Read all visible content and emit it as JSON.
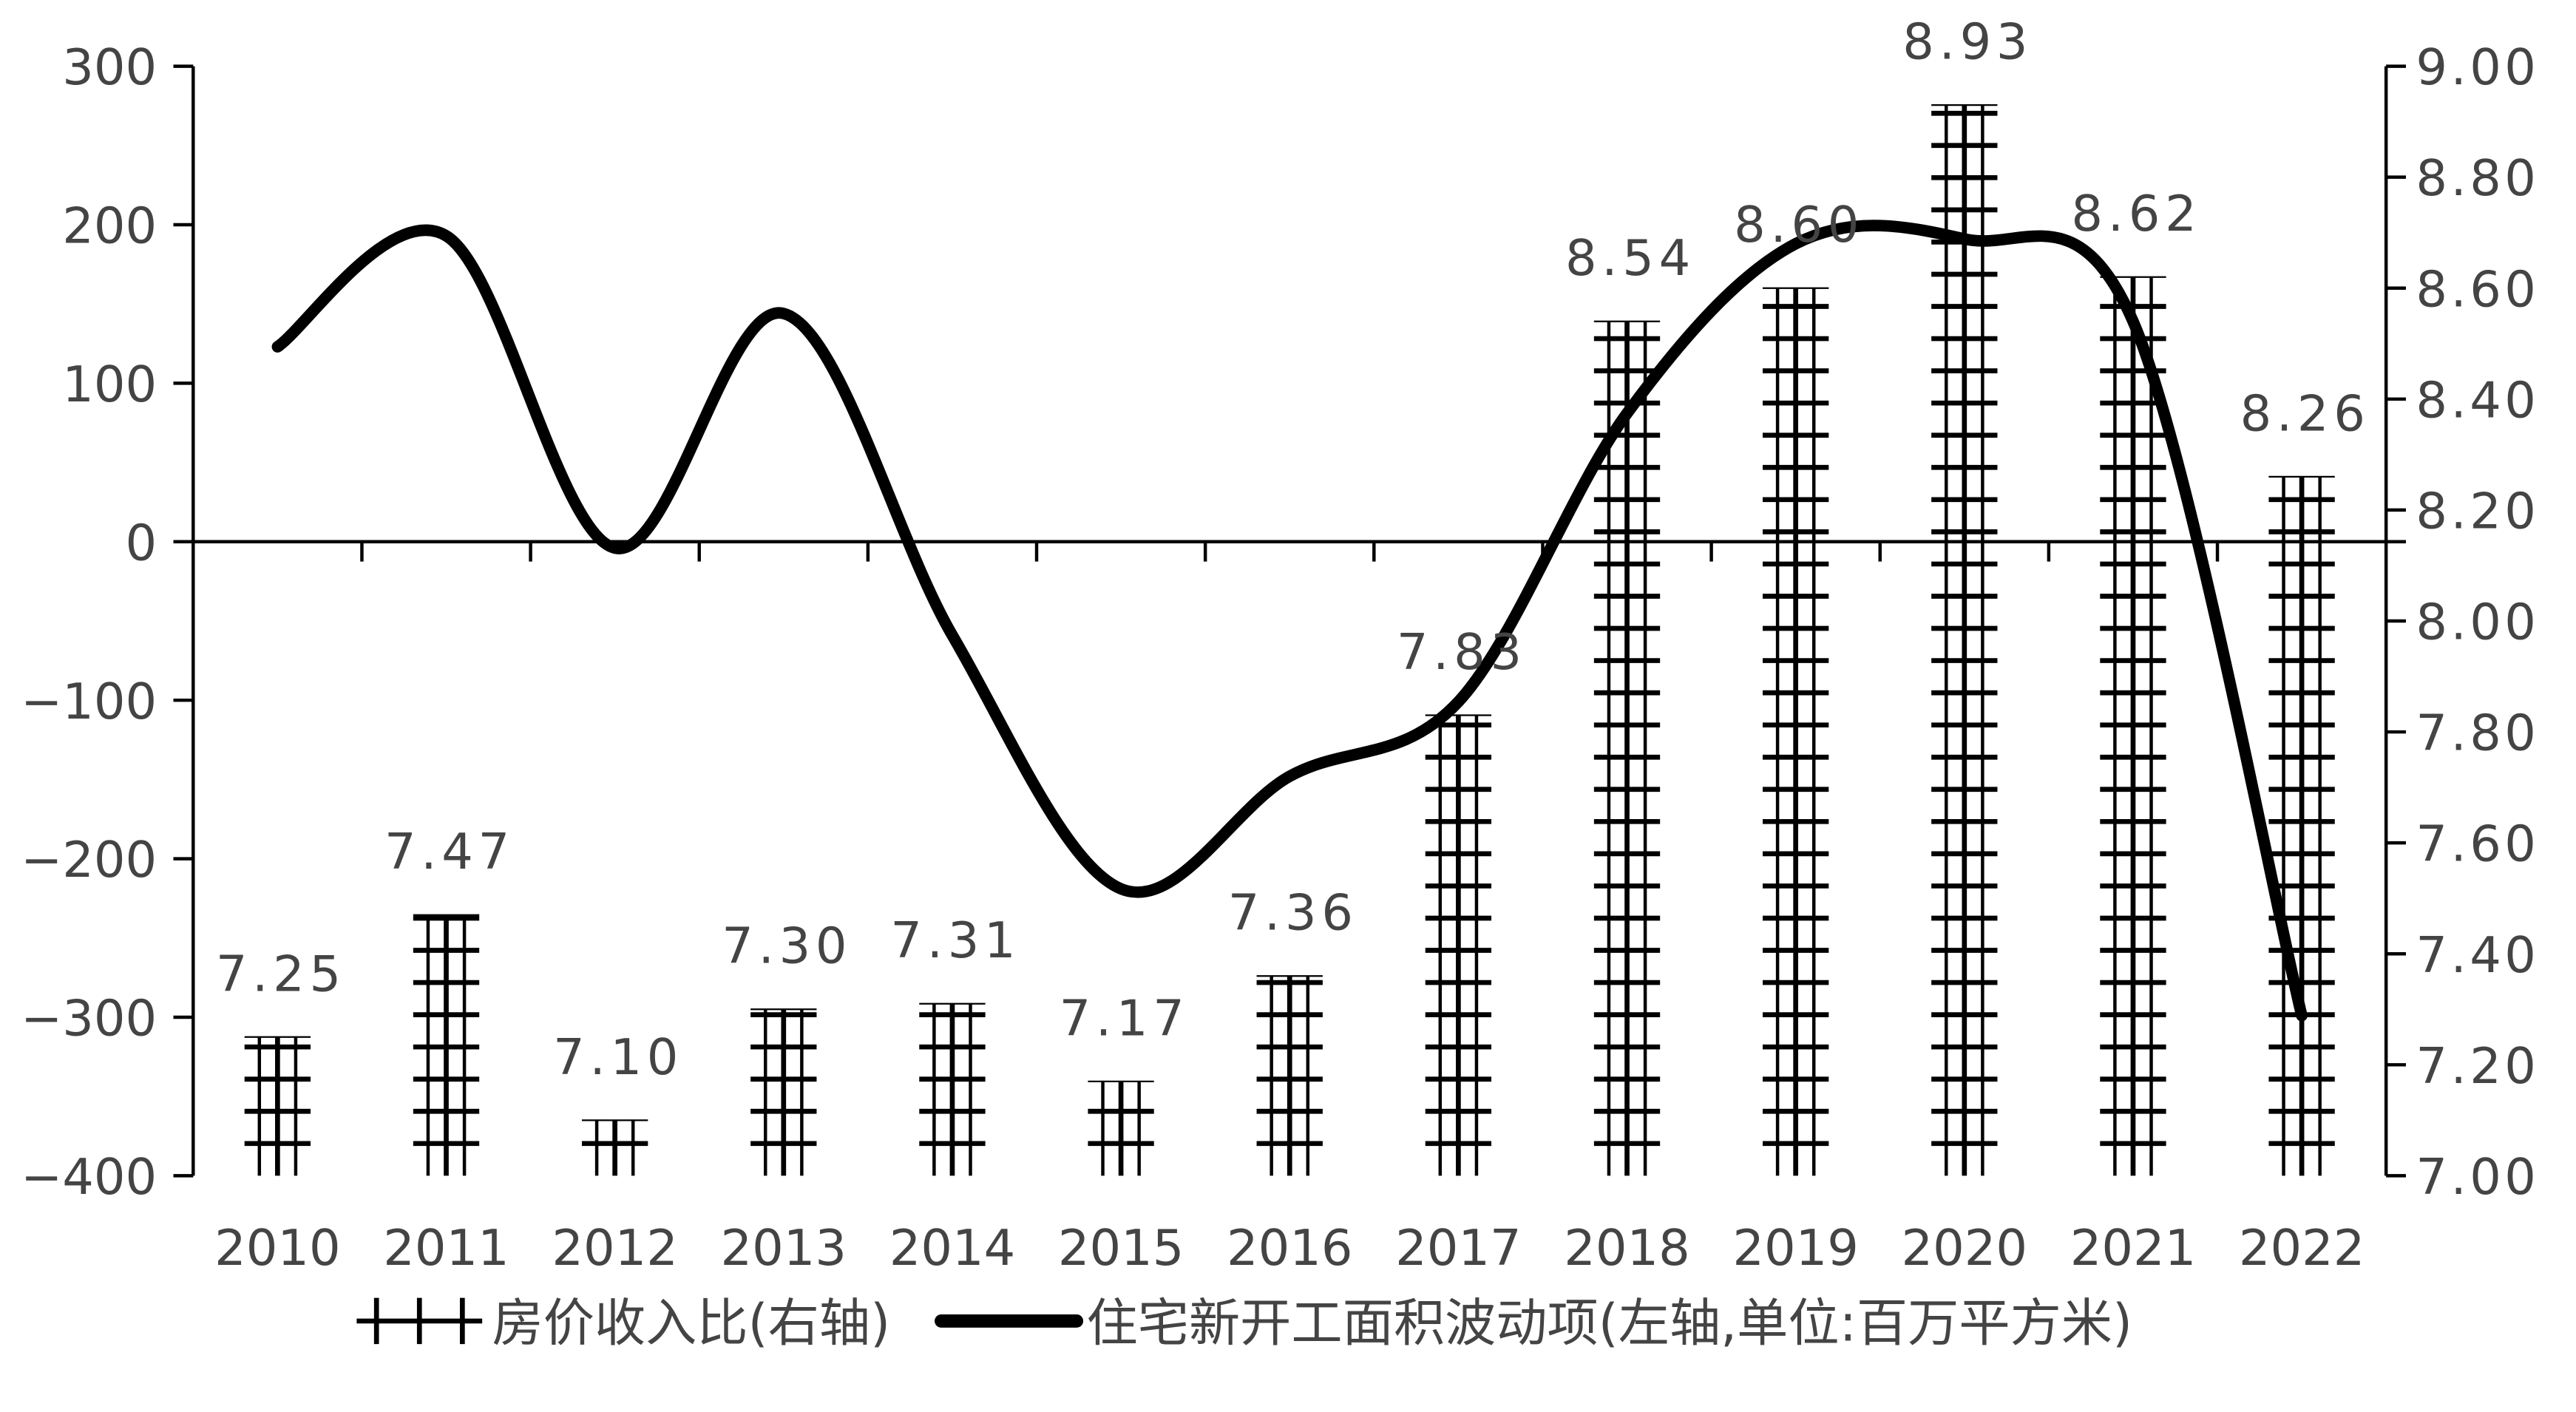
{
  "chart_data": {
    "type": "bar+line",
    "title": "",
    "categories": [
      "2010",
      "2011",
      "2012",
      "2013",
      "2014",
      "2015",
      "2016",
      "2017",
      "2018",
      "2019",
      "2020",
      "2021",
      "2022"
    ],
    "series": [
      {
        "name": "房价收入比(右轴)",
        "type": "bar",
        "axis": "right",
        "values": [
          7.25,
          7.47,
          7.1,
          7.3,
          7.31,
          7.17,
          7.36,
          7.83,
          8.54,
          8.6,
          8.93,
          8.62,
          8.26
        ],
        "labels": [
          "7.25",
          "7.47",
          "7.10",
          "7.30",
          "7.31",
          "7.17",
          "7.36",
          "7.83",
          "8.54",
          "8.60",
          "8.93",
          "8.62",
          "8.26"
        ]
      },
      {
        "name": "住宅新开工面积波动项(左轴,单位:百万平方米)",
        "type": "line",
        "axis": "left",
        "values": [
          123,
          193,
          -4,
          144,
          -59,
          -219,
          -148,
          -101,
          81,
          188,
          191,
          139,
          -299
        ]
      }
    ],
    "left_axis": {
      "range": [
        -400,
        300
      ],
      "ticks": [
        "300",
        "200",
        "100",
        "0",
        "−100",
        "−200",
        "−300",
        "−400"
      ],
      "tick_values": [
        300,
        200,
        100,
        0,
        -100,
        -200,
        -300,
        -400
      ]
    },
    "right_axis": {
      "range": [
        7.0,
        9.0
      ],
      "ticks": [
        "9.00",
        "8.80",
        "8.60",
        "8.40",
        "8.20",
        "8.00",
        "7.80",
        "7.60",
        "7.40",
        "7.20",
        "7.00"
      ],
      "tick_values": [
        9.0,
        8.8,
        8.6,
        8.4,
        8.2,
        8.0,
        7.8,
        7.6,
        7.4,
        7.2,
        7.0
      ]
    },
    "grid": false,
    "legend_placement": "bottom",
    "colors": {
      "bar": "#000000",
      "line": "#000000",
      "text": "#444444"
    }
  }
}
